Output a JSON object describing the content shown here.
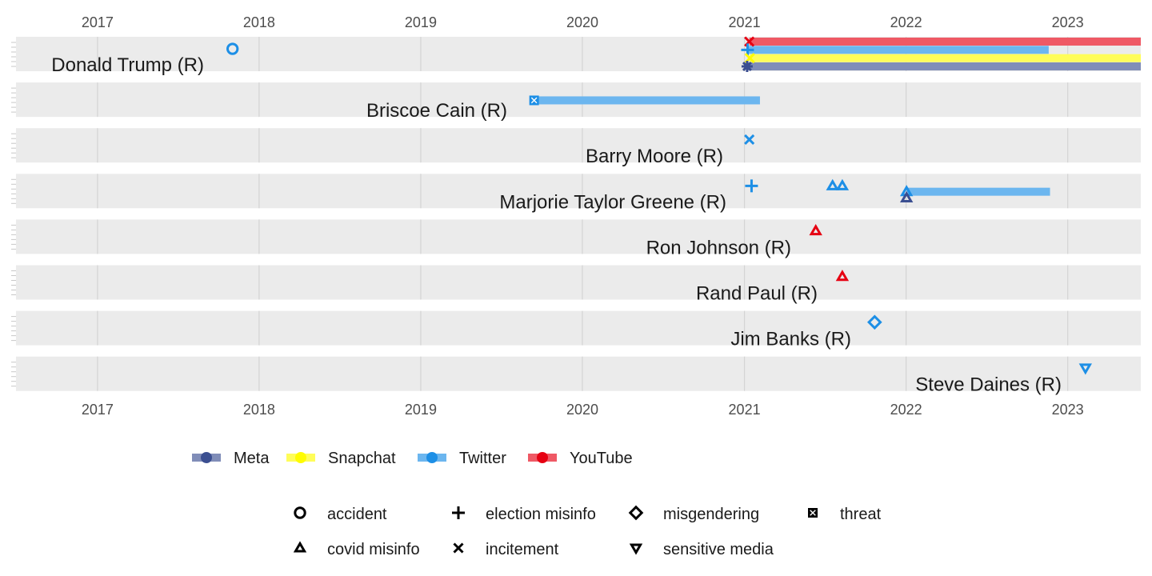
{
  "chart_data": {
    "type": "timeline",
    "x_axis": {
      "type": "date",
      "range": [
        "2016-07-01",
        "2023-06-15"
      ],
      "ticks": [
        "2017",
        "2018",
        "2019",
        "2020",
        "2021",
        "2022",
        "2023"
      ],
      "positions": [
        "top",
        "bottom"
      ],
      "grid": true
    },
    "platform_colors": {
      "Meta": "#3b4f91",
      "Snapchat": "#fffc00",
      "Twitter": "#1d8fe6",
      "YouTube": "#e60012"
    },
    "rows": [
      {
        "label": "Donald Trump (R)",
        "bars": [
          {
            "platform": "YouTube",
            "start": "2021-01-12",
            "end": "2023-06-15"
          },
          {
            "platform": "Twitter",
            "start": "2021-01-08",
            "end": "2022-11-19"
          },
          {
            "platform": "Snapchat",
            "start": "2021-01-13",
            "end": "2023-06-15"
          },
          {
            "platform": "Meta",
            "start": "2021-01-07",
            "end": "2023-06-15"
          }
        ],
        "events": [
          {
            "date": "2017-11-02",
            "platform": "Twitter",
            "reason": "accident"
          },
          {
            "date": "2021-01-12",
            "platform": "YouTube",
            "reason": "incitement"
          },
          {
            "date": "2021-01-08",
            "platform": "Twitter",
            "reason": "election misinfo"
          },
          {
            "date": "2021-01-13",
            "platform": "Snapchat",
            "reason": "incitement"
          },
          {
            "date": "2021-01-07",
            "platform": "Meta",
            "reason": "incitement"
          }
        ]
      },
      {
        "label": "Briscoe Cain (R)",
        "bars": [
          {
            "platform": "Twitter",
            "start": "2019-09-14",
            "end": "2021-02-05"
          }
        ],
        "events": [
          {
            "date": "2019-09-14",
            "platform": "Twitter",
            "reason": "threat"
          }
        ]
      },
      {
        "label": "Barry Moore (R)",
        "bars": [],
        "events": [
          {
            "date": "2021-01-12",
            "platform": "Twitter",
            "reason": "incitement"
          }
        ]
      },
      {
        "label": "Marjorie Taylor Greene (R)",
        "bars": [
          {
            "platform": "Twitter",
            "start": "2022-01-02",
            "end": "2022-11-22"
          }
        ],
        "events": [
          {
            "date": "2021-01-17",
            "platform": "Twitter",
            "reason": "election misinfo"
          },
          {
            "date": "2021-07-19",
            "platform": "Twitter",
            "reason": "covid misinfo"
          },
          {
            "date": "2021-08-10",
            "platform": "Twitter",
            "reason": "covid misinfo"
          },
          {
            "date": "2022-01-02",
            "platform": "Twitter",
            "reason": "covid misinfo"
          },
          {
            "date": "2022-01-02",
            "platform": "Meta",
            "reason": "covid misinfo"
          }
        ]
      },
      {
        "label": "Ron Johnson (R)",
        "bars": [],
        "events": [
          {
            "date": "2021-06-11",
            "platform": "YouTube",
            "reason": "covid misinfo"
          }
        ]
      },
      {
        "label": "Rand Paul (R)",
        "bars": [],
        "events": [
          {
            "date": "2021-08-10",
            "platform": "YouTube",
            "reason": "covid misinfo"
          }
        ]
      },
      {
        "label": "Jim Banks (R)",
        "bars": [],
        "events": [
          {
            "date": "2021-10-22",
            "platform": "Twitter",
            "reason": "misgendering"
          }
        ]
      },
      {
        "label": "Steve Daines (R)",
        "bars": [],
        "events": [
          {
            "date": "2023-02-10",
            "platform": "Twitter",
            "reason": "sensitive media"
          }
        ]
      }
    ],
    "legend_platform": {
      "position": "bottom",
      "items": [
        "Meta",
        "Snapchat",
        "Twitter",
        "YouTube"
      ]
    },
    "legend_reason": {
      "position": "bottom",
      "items": [
        {
          "label": "accident",
          "shape": "circle"
        },
        {
          "label": "covid misinfo",
          "shape": "triangle-up"
        },
        {
          "label": "election misinfo",
          "shape": "plus"
        },
        {
          "label": "incitement",
          "shape": "cross"
        },
        {
          "label": "misgendering",
          "shape": "diamond"
        },
        {
          "label": "sensitive media",
          "shape": "triangle-down"
        },
        {
          "label": "threat",
          "shape": "square-cross"
        }
      ]
    },
    "colors": {
      "panel_background": "#ebebeb",
      "gridline": "#d4d4d4",
      "legend_shape": "#000000"
    }
  }
}
